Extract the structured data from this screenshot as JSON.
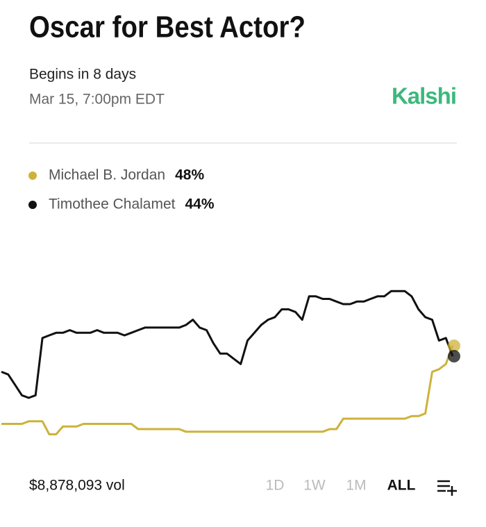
{
  "header": {
    "title": "Oscar for Best Actor?",
    "status": "Begins in 8 days",
    "date": "Mar 15, 7:00pm EDT",
    "brand": "Kalshi"
  },
  "chart_data": {
    "type": "line",
    "ylim": [
      0,
      100
    ],
    "series": [
      {
        "name": "Michael B. Jordan",
        "color": "#cdb23a",
        "values": [
          18,
          18,
          18,
          18,
          19,
          19,
          19,
          14,
          14,
          17,
          17,
          17,
          18,
          18,
          18,
          18,
          18,
          18,
          18,
          18,
          16,
          16,
          16,
          16,
          16,
          16,
          16,
          15,
          15,
          15,
          15,
          15,
          15,
          15,
          15,
          15,
          15,
          15,
          15,
          15,
          15,
          15,
          15,
          15,
          15,
          15,
          15,
          15,
          16,
          16,
          20,
          20,
          20,
          20,
          20,
          20,
          20,
          20,
          20,
          20,
          21,
          21,
          22,
          38,
          39,
          41,
          48
        ],
        "value_labels": [
          null,
          null,
          null,
          null,
          null,
          null,
          null,
          null,
          null,
          null,
          null,
          null,
          null,
          null,
          null,
          null,
          null,
          null,
          null,
          null,
          null,
          null,
          null,
          null,
          null,
          null,
          null,
          null,
          null,
          null,
          null,
          null,
          null,
          null,
          null,
          null,
          null,
          null,
          null,
          null,
          null,
          null,
          null,
          null,
          null,
          null,
          null,
          null,
          null,
          null,
          null,
          null,
          null,
          null,
          null,
          null,
          null,
          null,
          null,
          null,
          null,
          null,
          null,
          null,
          null,
          null,
          "48%"
        ]
      },
      {
        "name": "Timothee Chalamet",
        "color": "#111111",
        "values": [
          38,
          37,
          33,
          29,
          28,
          29,
          51,
          52,
          53,
          53,
          54,
          53,
          53,
          53,
          54,
          53,
          53,
          53,
          52,
          53,
          54,
          55,
          55,
          55,
          55,
          55,
          55,
          56,
          58,
          55,
          54,
          49,
          45,
          45,
          43,
          41,
          50,
          53,
          56,
          58,
          59,
          62,
          62,
          61,
          58,
          67,
          67,
          66,
          66,
          65,
          64,
          64,
          65,
          65,
          66,
          67,
          67,
          69,
          69,
          69,
          67,
          62,
          59,
          58,
          50,
          51,
          44
        ],
        "value_labels": [
          null,
          null,
          null,
          null,
          null,
          null,
          null,
          null,
          null,
          null,
          null,
          null,
          null,
          null,
          null,
          null,
          null,
          null,
          null,
          null,
          null,
          null,
          null,
          null,
          null,
          null,
          null,
          null,
          null,
          null,
          null,
          null,
          null,
          null,
          null,
          null,
          null,
          null,
          null,
          null,
          null,
          null,
          null,
          null,
          null,
          null,
          null,
          null,
          null,
          null,
          null,
          null,
          null,
          null,
          null,
          null,
          null,
          null,
          null,
          null,
          null,
          null,
          null,
          null,
          null,
          null,
          "44%"
        ]
      }
    ]
  },
  "footer": {
    "volume": "$8,878,093 vol",
    "tabs": [
      "1D",
      "1W",
      "1M",
      "ALL"
    ],
    "selected": 3
  }
}
